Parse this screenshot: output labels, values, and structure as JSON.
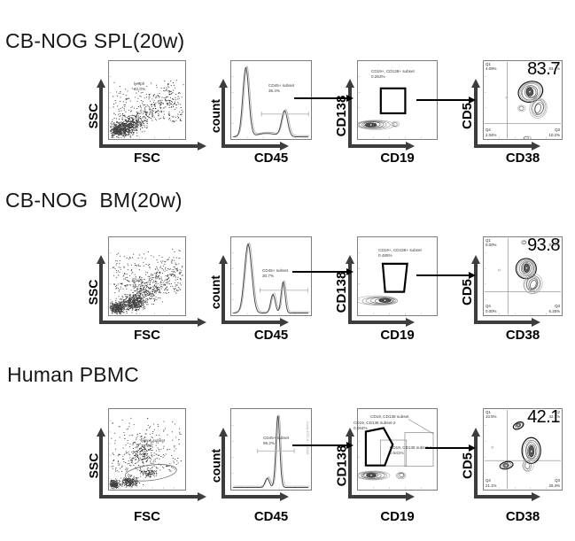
{
  "figure": {
    "rows": [
      {
        "title": "CB-NOG SPL(20w)",
        "plots": [
          {
            "ylabel": "SSC",
            "xlabel": "FSC",
            "ann_label": "lymph",
            "ann_value": "42.0%"
          },
          {
            "ylabel": "count",
            "xlabel": "CD45",
            "ann_label": "CD45+ subset",
            "ann_value": "35.4%"
          },
          {
            "ylabel": "CD138",
            "xlabel": "CD19",
            "ann_label": "CD19+, CD138+ subset",
            "ann_value": "0.263%"
          },
          {
            "ylabel": "CD5",
            "xlabel": "CD38",
            "big": "83.7",
            "q1_label": "Q1",
            "q1": "4.09%",
            "q2_label": "Q2",
            "q2": "83.7%",
            "q3_label": "Q3",
            "q3": "10.2%",
            "q4_label": "Q4",
            "q4": "2.04%"
          }
        ]
      },
      {
        "title": "CB-NOG  BM(20w)",
        "plots": [
          {
            "ylabel": "SSC",
            "xlabel": "FSC",
            "ann_label": "lymph",
            "ann_value": "18.7%"
          },
          {
            "ylabel": "count",
            "xlabel": "CD45",
            "ann_label": "CD45+ subset",
            "ann_value": "30.7%"
          },
          {
            "ylabel": "CD138",
            "xlabel": "CD19",
            "ann_label": "CD19+, CD138+ subset",
            "ann_value": "0.485%"
          },
          {
            "ylabel": "CD5",
            "xlabel": "CD38",
            "big": "93.8",
            "q1_label": "Q1",
            "q1": "0.00%",
            "q2_label": "Q2",
            "q2": "93.8%",
            "q3_label": "Q3",
            "q3": "6.25%",
            "q4_label": "Q4",
            "q4": "0.00%"
          }
        ]
      },
      {
        "title": "Human PBMC",
        "plots": [
          {
            "ylabel": "SSC",
            "xlabel": "FSC",
            "ann_label": "lymph subset",
            "ann_value": "13.5%"
          },
          {
            "ylabel": "count",
            "xlabel": "CD45",
            "ann_label": "CD45+ subset",
            "ann_value": "99.2%",
            "side_label": "Comp-FITC-A :: CD138"
          },
          {
            "ylabel": "CD138",
            "xlabel": "CD19",
            "ann_top": "CD19, CD138 subset",
            "ann2_label": "CD19, CD138 subset-2",
            "ann2_value": "0.064%",
            "ann_label": "CD19, CD138 subset-1",
            "ann_value": "0.541%"
          },
          {
            "ylabel": "CD5",
            "xlabel": "CD38",
            "big": "42.1",
            "q1_label": "Q1",
            "q1": "10.5%",
            "q2_label": "Q2",
            "q2": "42.1%",
            "q3_label": "Q3",
            "q3": "26.3%",
            "q4_label": "Q4",
            "q4": "21.1%"
          }
        ]
      }
    ]
  },
  "chart_data": [
    {
      "sample": "CB-NOG SPL(20w)",
      "type": "scatter",
      "xlabel": "FSC",
      "ylabel": "SSC",
      "gates": [
        {
          "label": "lymph",
          "percent": 42.0
        }
      ]
    },
    {
      "sample": "CB-NOG SPL(20w)",
      "type": "histogram",
      "xlabel": "CD45",
      "ylabel": "count",
      "gates": [
        {
          "label": "CD45+ subset",
          "percent": 35.4
        }
      ]
    },
    {
      "sample": "CB-NOG SPL(20w)",
      "type": "contour",
      "xlabel": "CD19",
      "ylabel": "CD138",
      "gates": [
        {
          "label": "CD19+, CD138+ subset",
          "percent": 0.263
        }
      ]
    },
    {
      "sample": "CB-NOG SPL(20w)",
      "type": "quadrant-contour",
      "xlabel": "CD38",
      "ylabel": "CD5",
      "quadrants": {
        "Q1": 4.09,
        "Q2": 83.7,
        "Q3": 10.2,
        "Q4": 2.04
      },
      "highlighted_value": 83.7
    },
    {
      "sample": "CB-NOG BM(20w)",
      "type": "scatter",
      "xlabel": "FSC",
      "ylabel": "SSC",
      "gates": [
        {
          "label": "lymph",
          "percent": 18.7
        }
      ]
    },
    {
      "sample": "CB-NOG BM(20w)",
      "type": "histogram",
      "xlabel": "CD45",
      "ylabel": "count",
      "gates": [
        {
          "label": "CD45+ subset",
          "percent": 30.7
        }
      ]
    },
    {
      "sample": "CB-NOG BM(20w)",
      "type": "contour",
      "xlabel": "CD19",
      "ylabel": "CD138",
      "gates": [
        {
          "label": "CD19+, CD138+ subset",
          "percent": 0.485
        }
      ]
    },
    {
      "sample": "CB-NOG BM(20w)",
      "type": "quadrant-contour",
      "xlabel": "CD38",
      "ylabel": "CD5",
      "quadrants": {
        "Q1": 0.0,
        "Q2": 93.8,
        "Q3": 6.25,
        "Q4": 0.0
      },
      "highlighted_value": 93.8
    },
    {
      "sample": "Human PBMC",
      "type": "scatter",
      "xlabel": "FSC",
      "ylabel": "SSC",
      "gates": [
        {
          "label": "lymph subset",
          "percent": 13.5
        }
      ]
    },
    {
      "sample": "Human PBMC",
      "type": "histogram",
      "xlabel": "CD45",
      "ylabel": "count",
      "gates": [
        {
          "label": "CD45+ subset",
          "percent": 99.2
        }
      ]
    },
    {
      "sample": "Human PBMC",
      "type": "contour",
      "xlabel": "CD19",
      "ylabel": "CD138",
      "gates": [
        {
          "label": "CD19, CD138 subset"
        },
        {
          "label": "CD19, CD138 subset-2",
          "percent": 0.064
        },
        {
          "label": "CD19, CD138 subset-1",
          "percent": 0.541
        }
      ]
    },
    {
      "sample": "Human PBMC",
      "type": "quadrant-contour",
      "xlabel": "CD38",
      "ylabel": "CD5",
      "quadrants": {
        "Q1": 10.5,
        "Q2": 42.1,
        "Q3": 26.3,
        "Q4": 21.1
      },
      "highlighted_value": 42.1
    }
  ]
}
